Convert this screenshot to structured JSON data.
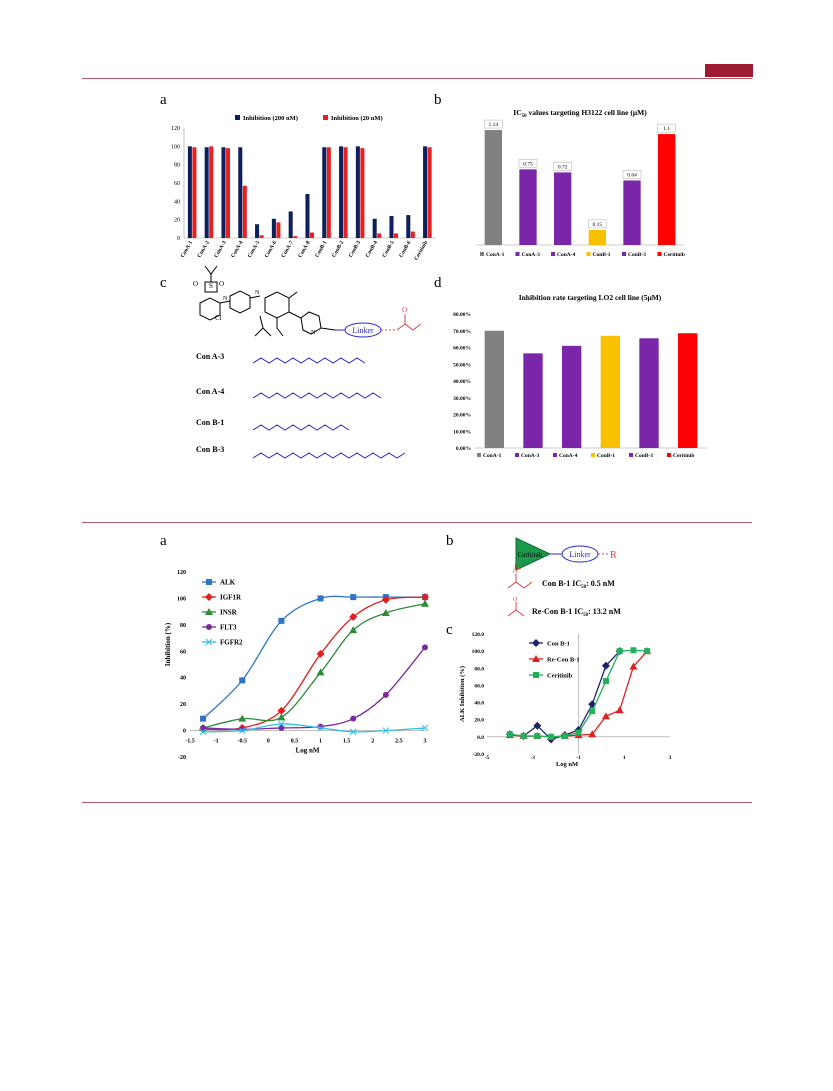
{
  "panel_labels": {
    "top_a": "a",
    "top_b": "b",
    "top_c": "c",
    "top_d": "d",
    "bot_a": "a",
    "bot_b": "b",
    "bot_c": "c"
  },
  "structures": {
    "linker_label": "Linker",
    "ceritinib_label": "Ceritinib",
    "r_label": "R",
    "r_colon": "R:",
    "con_a3": "Con A-3",
    "con_a4": "Con A-4",
    "con_b1": "Con B-1",
    "con_b3": "Con B-3",
    "cl": "Cl",
    "recon_b1_text_1": "Con B-1 IC",
    "recon_b1_text_2": "Re-Con B-1 IC",
    "sub50": "50",
    "val_1": ": 0.5 nM",
    "val_2": ": 13.2 nM"
  },
  "chart_data": [
    {
      "id": "top_a",
      "type": "bar",
      "title": "",
      "categories": [
        "ConA-1",
        "ConA-2",
        "ConA-3",
        "ConA-4",
        "ConA-5",
        "ConA-6",
        "ConA-7",
        "ConA-8",
        "ConB-1",
        "ConB-2",
        "ConB-3",
        "ConB-4",
        "ConB-5",
        "ConB-6",
        "Ceritinib"
      ],
      "series": [
        {
          "name": "Inhibition (200 nM)",
          "color": "#0d1f5c",
          "values": [
            100,
            99,
            99,
            99,
            15,
            21,
            29,
            48,
            99,
            100,
            100,
            21,
            24,
            25,
            100
          ]
        },
        {
          "name": "Inhibition (20 nM)",
          "color": "#e82020",
          "values": [
            99,
            100,
            98,
            57,
            3,
            17,
            2,
            6,
            99,
            99,
            98,
            5,
            5,
            7,
            99
          ]
        }
      ],
      "ylim": [
        0,
        120
      ],
      "yticks": [
        0,
        20,
        40,
        60,
        80,
        100,
        120
      ],
      "legend": "top"
    },
    {
      "id": "top_b",
      "type": "bar",
      "title_prefix": "IC",
      "title_sub": "50",
      "title_suffix": " values targeting H3122 cell line (μM)",
      "categories": [
        "ConA-1",
        "ConA-3",
        "ConA-4",
        "ConB-1",
        "ConB-3",
        "Ceritinib"
      ],
      "values": [
        1.14,
        0.75,
        0.72,
        0.15,
        0.64,
        1.1
      ],
      "labels": [
        "1.14",
        "0.75",
        "0.72",
        "0.15",
        "0.64",
        "1.1"
      ],
      "colors": [
        "#808080",
        "#7b26a8",
        "#7b26a8",
        "#f9c000",
        "#7b26a8",
        "#ff0000"
      ],
      "ylim": [
        0,
        1.2
      ],
      "legend": "bottom"
    },
    {
      "id": "top_d",
      "type": "bar",
      "title": "Inhibition rate targeting LO2 cell line (5μM)",
      "categories": [
        "ConA-1",
        "ConA-3",
        "ConA-4",
        "ConB-1",
        "ConB-3",
        "Ceritinib"
      ],
      "values": [
        70.0,
        56.5,
        61.0,
        67.0,
        65.5,
        68.5
      ],
      "colors": [
        "#808080",
        "#7b26a8",
        "#7b26a8",
        "#f9c000",
        "#7b26a8",
        "#ff0000"
      ],
      "ylim": [
        0,
        80
      ],
      "yticks": [
        "0.00%",
        "10.00%",
        "20.00%",
        "30.00%",
        "40.00%",
        "50.00%",
        "60.00%",
        "70.00%",
        "80.00%"
      ],
      "legend": "bottom"
    },
    {
      "id": "bot_a",
      "type": "line",
      "xlabel": "Log nM",
      "ylabel": "Inhibition (%)",
      "xlim": [
        -1.5,
        3
      ],
      "ylim": [
        -20,
        120
      ],
      "xticks": [
        "-1.5",
        "-1",
        "-0.5",
        "0",
        "0.5",
        "1",
        "1.5",
        "2",
        "2.5",
        "3"
      ],
      "yticks": [
        "-20",
        "0",
        "20",
        "40",
        "60",
        "80",
        "100",
        "120"
      ],
      "x": [
        -1.25,
        -0.5,
        0.25,
        1,
        1.625,
        2.25,
        3
      ],
      "series": [
        {
          "name": "ALK",
          "color": "#2e75c8",
          "marker": "square",
          "values": [
            9,
            38,
            83,
            100,
            101,
            101,
            101
          ]
        },
        {
          "name": "IGF1R",
          "color": "#e02020",
          "marker": "diamond",
          "values": [
            1,
            2,
            15,
            58,
            86,
            99,
            101
          ]
        },
        {
          "name": "INSR",
          "color": "#2e8b3a",
          "marker": "triangle",
          "values": [
            2,
            9,
            10,
            44,
            76,
            89,
            96
          ]
        },
        {
          "name": "FLT3",
          "color": "#7a2aa0",
          "marker": "circle",
          "values": [
            2,
            1,
            2,
            3,
            9,
            27,
            63
          ]
        },
        {
          "name": "FGFR2",
          "color": "#33bfe8",
          "marker": "x",
          "values": [
            -1,
            0,
            5,
            2,
            -1,
            0,
            2
          ]
        }
      ]
    },
    {
      "id": "bot_c",
      "type": "line",
      "xlabel": "Log nM",
      "ylabel": "ALK Inhibition (%)",
      "xlim": [
        -5,
        3
      ],
      "ylim": [
        -20,
        120
      ],
      "xticks": [
        "-5",
        "-3",
        "-1",
        "1",
        "3"
      ],
      "yticks": [
        "-20.0",
        "0.0",
        "20.0",
        "40.0",
        "60.0",
        "80.0",
        "100.0",
        "120.0"
      ],
      "series": [
        {
          "name": "Con B-1",
          "color": "#1a2466",
          "marker": "diamond",
          "x": [
            -4,
            -3.4,
            -2.8,
            -2.2,
            -1.6,
            -1,
            -0.4,
            0.2,
            0.8
          ],
          "values": [
            3,
            1,
            13,
            -3,
            2,
            8,
            38,
            83,
            100
          ]
        },
        {
          "name": "Re-Con B-1",
          "color": "#e02020",
          "marker": "triangle",
          "x": [
            -4,
            -3.4,
            -2.8,
            -2.2,
            -1.6,
            -1,
            -0.4,
            0.2,
            0.8,
            1.4,
            2
          ],
          "values": [
            2,
            1,
            1,
            0,
            1,
            2,
            3,
            24,
            31,
            82,
            100
          ]
        },
        {
          "name": "Ceritinib",
          "color": "#22b05a",
          "marker": "square",
          "x": [
            -4,
            -3.4,
            -2.8,
            -2.2,
            -1.6,
            -1,
            -0.4,
            0.2,
            0.8,
            1.4,
            2
          ],
          "values": [
            3,
            1,
            1,
            0,
            1,
            5,
            30,
            65,
            100,
            101,
            100
          ]
        }
      ]
    }
  ]
}
